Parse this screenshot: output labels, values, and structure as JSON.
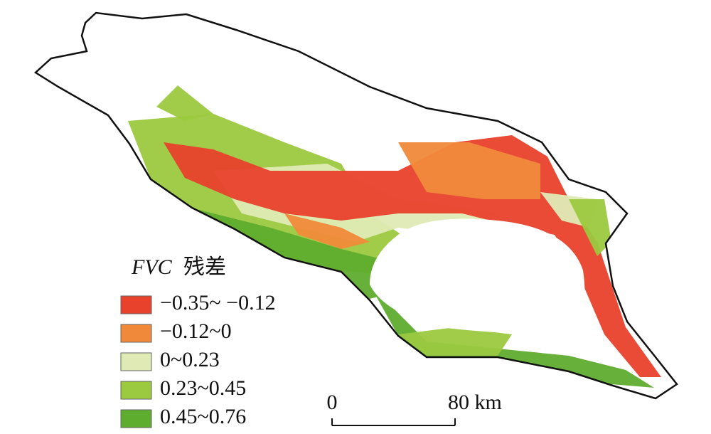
{
  "legend": {
    "title_abbr": "FVC",
    "title_suffix": "残差",
    "items": [
      {
        "label": "−0.35~ −0.12",
        "color": "#e8412c"
      },
      {
        "label": "−0.12~0",
        "color": "#f08a3a"
      },
      {
        "label": "0~0.23",
        "color": "#dfeab5"
      },
      {
        "label": "0.23~0.45",
        "color": "#9bc93f"
      },
      {
        "label": "0.45~0.76",
        "color": "#5fad2f"
      }
    ]
  },
  "scale_bar": {
    "start_label": "0",
    "end_label": "80 km"
  }
}
